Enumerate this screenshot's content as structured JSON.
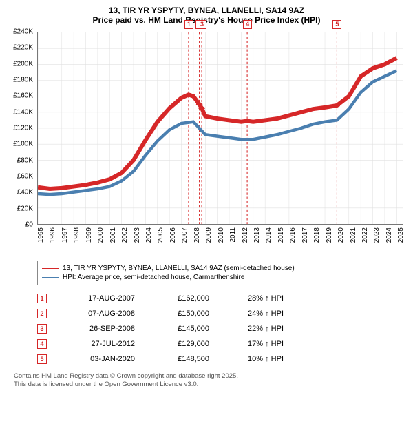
{
  "title_line1": "13, TIR YR YSPYTY, BYNEA, LLANELLI, SA14 9AZ",
  "title_line2": "Price paid vs. HM Land Registry's House Price Index (HPI)",
  "chart": {
    "type": "line",
    "background_color": "#ffffff",
    "grid_color": "#e0e0e0",
    "border_color": "#777777",
    "xlim": [
      1995,
      2025.5
    ],
    "ylim": [
      0,
      240000
    ],
    "ytick_step": 20000,
    "y_tick_labels": [
      "£0",
      "£20K",
      "£40K",
      "£60K",
      "£80K",
      "£100K",
      "£120K",
      "£140K",
      "£160K",
      "£180K",
      "£200K",
      "£220K",
      "£240K"
    ],
    "x_ticks": [
      1995,
      1996,
      1997,
      1998,
      1999,
      2000,
      2001,
      2002,
      2003,
      2004,
      2005,
      2006,
      2007,
      2008,
      2009,
      2010,
      2011,
      2012,
      2013,
      2014,
      2015,
      2016,
      2017,
      2018,
      2019,
      2020,
      2021,
      2022,
      2023,
      2024,
      2025
    ],
    "label_fontsize": 10,
    "series": [
      {
        "name": "price_paid",
        "label": "13, TIR YR YSPYTY, BYNEA, LLANELLI, SA14 9AZ (semi-detached house)",
        "color": "#d62728",
        "line_width": 2,
        "points": [
          [
            1995,
            46000
          ],
          [
            1996,
            44000
          ],
          [
            1997,
            45000
          ],
          [
            1998,
            47000
          ],
          [
            1999,
            49000
          ],
          [
            2000,
            52000
          ],
          [
            2001,
            56000
          ],
          [
            2002,
            64000
          ],
          [
            2003,
            80000
          ],
          [
            2004,
            105000
          ],
          [
            2005,
            128000
          ],
          [
            2006,
            145000
          ],
          [
            2007,
            158000
          ],
          [
            2007.6,
            162000
          ],
          [
            2008,
            160000
          ],
          [
            2008.5,
            150000
          ],
          [
            2008.7,
            145000
          ],
          [
            2009,
            135000
          ],
          [
            2010,
            132000
          ],
          [
            2011,
            130000
          ],
          [
            2012,
            128000
          ],
          [
            2012.5,
            129000
          ],
          [
            2013,
            128000
          ],
          [
            2014,
            130000
          ],
          [
            2015,
            132000
          ],
          [
            2016,
            136000
          ],
          [
            2017,
            140000
          ],
          [
            2018,
            144000
          ],
          [
            2019,
            146000
          ],
          [
            2020,
            148500
          ],
          [
            2021,
            160000
          ],
          [
            2022,
            185000
          ],
          [
            2023,
            195000
          ],
          [
            2024,
            200000
          ],
          [
            2025,
            208000
          ]
        ]
      },
      {
        "name": "hpi",
        "label": "HPI: Average price, semi-detached house, Carmarthenshire",
        "color": "#4a7fb0",
        "line_width": 1.5,
        "points": [
          [
            1995,
            38000
          ],
          [
            1996,
            37000
          ],
          [
            1997,
            38000
          ],
          [
            1998,
            40000
          ],
          [
            1999,
            42000
          ],
          [
            2000,
            44000
          ],
          [
            2001,
            47000
          ],
          [
            2002,
            54000
          ],
          [
            2003,
            66000
          ],
          [
            2004,
            86000
          ],
          [
            2005,
            104000
          ],
          [
            2006,
            118000
          ],
          [
            2007,
            126000
          ],
          [
            2008,
            128000
          ],
          [
            2009,
            112000
          ],
          [
            2010,
            110000
          ],
          [
            2011,
            108000
          ],
          [
            2012,
            106000
          ],
          [
            2013,
            106000
          ],
          [
            2014,
            109000
          ],
          [
            2015,
            112000
          ],
          [
            2016,
            116000
          ],
          [
            2017,
            120000
          ],
          [
            2018,
            125000
          ],
          [
            2019,
            128000
          ],
          [
            2020,
            130000
          ],
          [
            2021,
            144000
          ],
          [
            2022,
            165000
          ],
          [
            2023,
            178000
          ],
          [
            2024,
            185000
          ],
          [
            2025,
            192000
          ]
        ]
      }
    ],
    "sale_markers": [
      {
        "n": "1",
        "x": 2007.6,
        "color": "#d62728"
      },
      {
        "n": "2",
        "x": 2008.5,
        "color": "#d62728"
      },
      {
        "n": "3",
        "x": 2008.7,
        "color": "#d62728"
      },
      {
        "n": "4",
        "x": 2012.5,
        "color": "#d62728"
      },
      {
        "n": "5",
        "x": 2020.0,
        "color": "#d62728"
      }
    ],
    "marker_dash_color": "#d62728"
  },
  "legend": {
    "items": [
      {
        "color": "#d62728",
        "label": "13, TIR YR YSPYTY, BYNEA, LLANELLI, SA14 9AZ (semi-detached house)"
      },
      {
        "color": "#4a7fb0",
        "label": "HPI: Average price, semi-detached house, Carmarthenshire"
      }
    ]
  },
  "sales_table": {
    "rows": [
      {
        "n": "1",
        "date": "17-AUG-2007",
        "price": "£162,000",
        "pct": "28% ↑ HPI",
        "color": "#d62728"
      },
      {
        "n": "2",
        "date": "07-AUG-2008",
        "price": "£150,000",
        "pct": "24% ↑ HPI",
        "color": "#d62728"
      },
      {
        "n": "3",
        "date": "26-SEP-2008",
        "price": "£145,000",
        "pct": "22% ↑ HPI",
        "color": "#d62728"
      },
      {
        "n": "4",
        "date": "27-JUL-2012",
        "price": "£129,000",
        "pct": "17% ↑ HPI",
        "color": "#d62728"
      },
      {
        "n": "5",
        "date": "03-JAN-2020",
        "price": "£148,500",
        "pct": "10% ↑ HPI",
        "color": "#d62728"
      }
    ]
  },
  "footer_line1": "Contains HM Land Registry data © Crown copyright and database right 2025.",
  "footer_line2": "This data is licensed under the Open Government Licence v3.0."
}
